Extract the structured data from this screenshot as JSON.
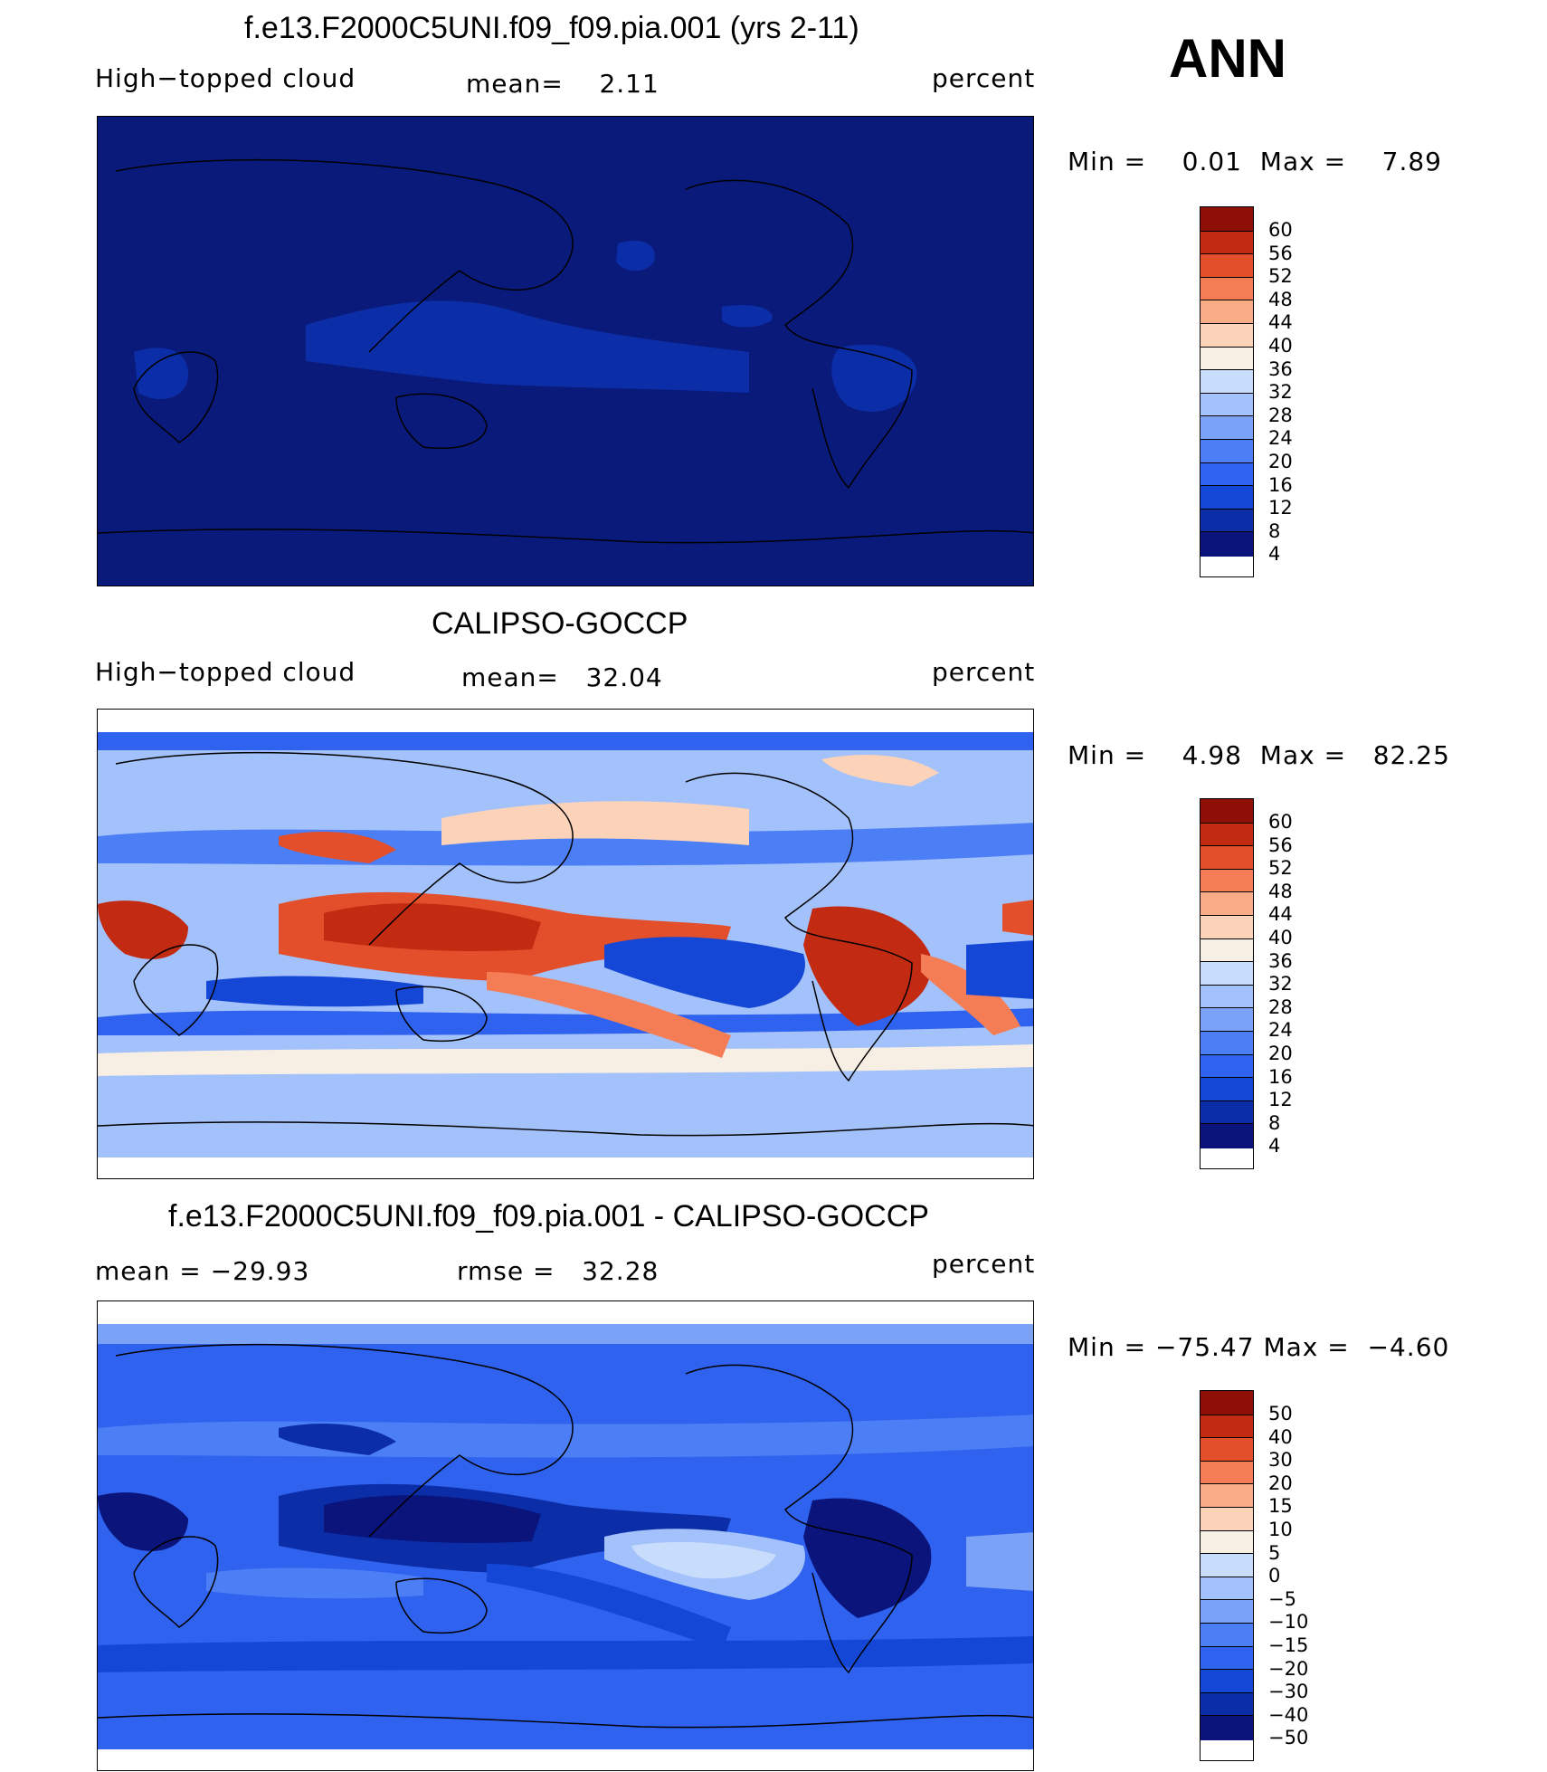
{
  "season": "ANN",
  "colors": {
    "map_dark": "#0a1a7a",
    "ramp": [
      "#0a147a",
      "#0b2ea8",
      "#1447d6",
      "#2f62ee",
      "#4c7ef5",
      "#7aa2f6",
      "#a3c1fa",
      "#c8dcfb",
      "#f8efe4",
      "#fcd2b8",
      "#f9ac86",
      "#f47d55",
      "#e24f2a",
      "#c32a12",
      "#8d0f05"
    ]
  },
  "panels": [
    {
      "title": "f.e13.F2000C5UNI.f09_f09.pia.001 (yrs 2-11)",
      "left_label": "High−topped cloud",
      "mid_label": "mean=    2.11",
      "right_label": "percent",
      "minmax": "Min =    0.01  Max =    7.89",
      "colorbar_labels": [
        "60",
        "56",
        "52",
        "48",
        "44",
        "40",
        "36",
        "32",
        "28",
        "24",
        "20",
        "16",
        "12",
        "8",
        "4"
      ]
    },
    {
      "title": "CALIPSO-GOCCP",
      "left_label": "High−topped cloud",
      "mid_label": "mean=   32.04",
      "right_label": "percent",
      "minmax": "Min =    4.98  Max =   82.25",
      "colorbar_labels": [
        "60",
        "56",
        "52",
        "48",
        "44",
        "40",
        "36",
        "32",
        "28",
        "24",
        "20",
        "16",
        "12",
        "8",
        "4"
      ]
    },
    {
      "title": "f.e13.F2000C5UNI.f09_f09.pia.001 - CALIPSO-GOCCP",
      "left_label": "mean = −29.93",
      "mid_label": "rmse =   32.28",
      "right_label": "percent",
      "minmax": "Min = −75.47 Max =  −4.60",
      "colorbar_labels": [
        "50",
        "40",
        "30",
        "20",
        "15",
        "10",
        "5",
        "0",
        "−5",
        "−10",
        "−15",
        "−20",
        "−30",
        "−40",
        "−50"
      ]
    }
  ]
}
